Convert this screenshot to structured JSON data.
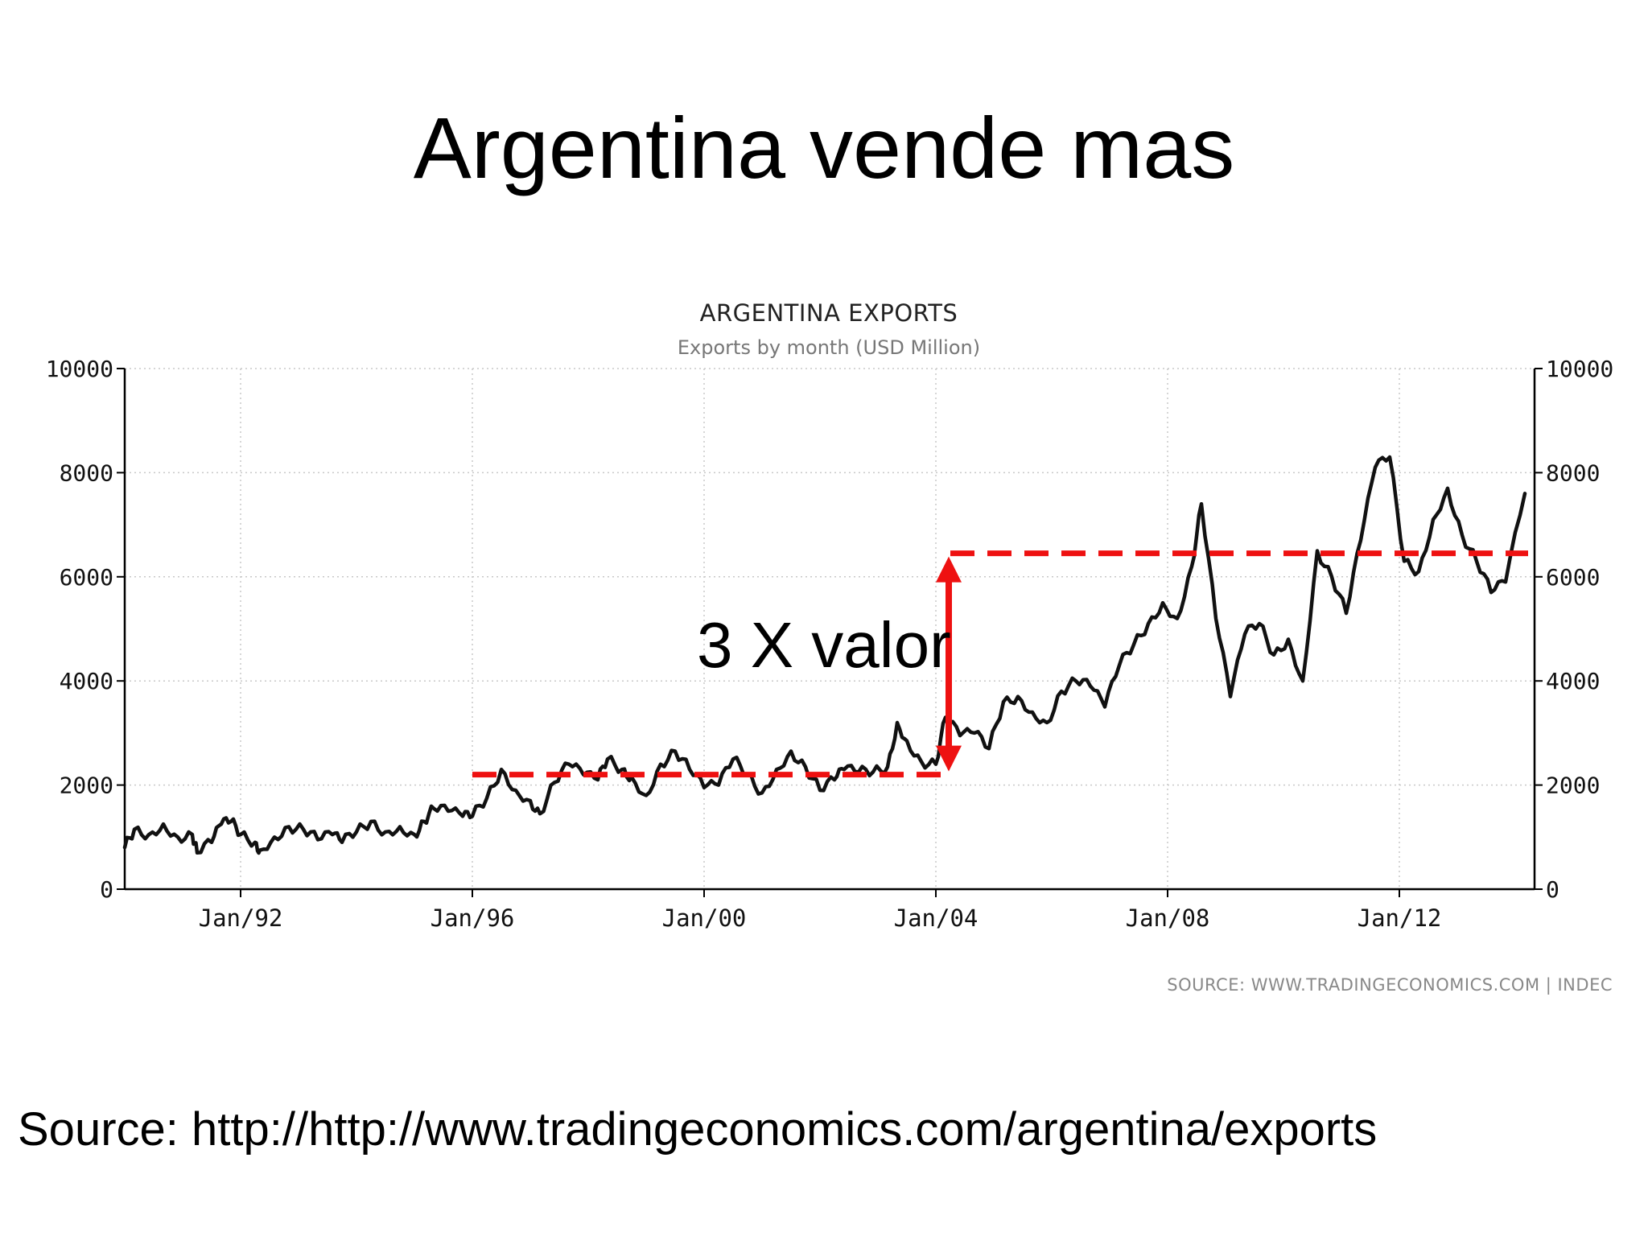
{
  "slide": {
    "title": "Argentina vende mas",
    "source": "Source: http://http://www.tradingeconomics.com/argentina/exports"
  },
  "annotation": {
    "label": "3 X valor",
    "baseline_value": 2200,
    "top_value": 6450,
    "baseline_range": [
      "Jan/96",
      "Jan/04"
    ],
    "top_range": [
      "Jan/04",
      "2014-03"
    ],
    "color": "#ee1111"
  },
  "chart_data": {
    "type": "line",
    "title": "ARGENTINA EXPORTS",
    "subtitle": "Exports by month (USD Million)",
    "source": "SOURCE:  WWW.TRADINGECONOMICS.COM  |  INDEC",
    "ylim": [
      0,
      10000
    ],
    "yticks": [
      0,
      2000,
      4000,
      6000,
      8000,
      10000
    ],
    "xlim": [
      "1990-01",
      "2014-05"
    ],
    "xticks": [
      {
        "label": "Jan/92",
        "date": "1992-01"
      },
      {
        "label": "Jan/96",
        "date": "1996-01"
      },
      {
        "label": "Jan/00",
        "date": "2000-01"
      },
      {
        "label": "Jan/04",
        "date": "2004-01"
      },
      {
        "label": "Jan/08",
        "date": "2008-01"
      },
      {
        "label": "Jan/12",
        "date": "2012-01"
      }
    ],
    "grid": true,
    "line_color": "#111111",
    "series": [
      {
        "points": [
          [
            "1990-01",
            800
          ],
          [
            "1990-03",
            1150
          ],
          [
            "1990-06",
            1050
          ],
          [
            "1990-09",
            1250
          ],
          [
            "1990-12",
            1000
          ],
          [
            "1991-03",
            1050
          ],
          [
            "1991-04",
            700
          ],
          [
            "1991-07",
            900
          ],
          [
            "1991-09",
            1250
          ],
          [
            "1991-11",
            1300
          ],
          [
            "1992-01",
            1050
          ],
          [
            "1992-04",
            900
          ],
          [
            "1992-05",
            750
          ],
          [
            "1992-08",
            1000
          ],
          [
            "1992-11",
            1200
          ],
          [
            "1993-02",
            1150
          ],
          [
            "1993-05",
            950
          ],
          [
            "1993-08",
            1050
          ],
          [
            "1993-10",
            900
          ],
          [
            "1994-01",
            1100
          ],
          [
            "1994-04",
            1300
          ],
          [
            "1994-07",
            1100
          ],
          [
            "1994-10",
            1200
          ],
          [
            "1995-01",
            1050
          ],
          [
            "1995-03",
            1300
          ],
          [
            "1995-05",
            1550
          ],
          [
            "1995-08",
            1500
          ],
          [
            "1995-11",
            1400
          ],
          [
            "1996-01",
            1400
          ],
          [
            "1996-04",
            1750
          ],
          [
            "1996-07",
            2300
          ],
          [
            "1996-10",
            1900
          ],
          [
            "1997-01",
            1700
          ],
          [
            "1997-03",
            1450
          ],
          [
            "1997-06",
            2050
          ],
          [
            "1997-09",
            2400
          ],
          [
            "1997-12",
            2200
          ],
          [
            "1998-03",
            2100
          ],
          [
            "1998-05",
            2500
          ],
          [
            "1998-08",
            2300
          ],
          [
            "1998-10",
            2150
          ],
          [
            "1999-01",
            1800
          ],
          [
            "1999-04",
            2400
          ],
          [
            "1999-07",
            2650
          ],
          [
            "1999-10",
            2300
          ],
          [
            "2000-01",
            1950
          ],
          [
            "2000-04",
            2000
          ],
          [
            "2000-07",
            2500
          ],
          [
            "2000-10",
            2200
          ],
          [
            "2001-01",
            1850
          ],
          [
            "2001-04",
            2300
          ],
          [
            "2001-07",
            2650
          ],
          [
            "2001-10",
            2350
          ],
          [
            "2002-01",
            1900
          ],
          [
            "2002-04",
            2100
          ],
          [
            "2002-06",
            2300
          ],
          [
            "2002-09",
            2250
          ],
          [
            "2002-12",
            2250
          ],
          [
            "2003-03",
            2350
          ],
          [
            "2003-05",
            3200
          ],
          [
            "2003-07",
            2850
          ],
          [
            "2003-10",
            2450
          ],
          [
            "2004-01",
            2400
          ],
          [
            "2004-03",
            3300
          ],
          [
            "2004-06",
            2950
          ],
          [
            "2004-09",
            3000
          ],
          [
            "2004-12",
            2700
          ],
          [
            "2005-03",
            3600
          ],
          [
            "2005-06",
            3700
          ],
          [
            "2005-09",
            3400
          ],
          [
            "2005-12",
            3200
          ],
          [
            "2006-03",
            3800
          ],
          [
            "2006-06",
            4000
          ],
          [
            "2006-09",
            3900
          ],
          [
            "2006-12",
            3500
          ],
          [
            "2007-03",
            4300
          ],
          [
            "2007-06",
            4700
          ],
          [
            "2007-09",
            5100
          ],
          [
            "2007-12",
            5500
          ],
          [
            "2008-03",
            5200
          ],
          [
            "2008-06",
            6200
          ],
          [
            "2008-08",
            7400
          ],
          [
            "2008-11",
            5200
          ],
          [
            "2009-02",
            3700
          ],
          [
            "2009-05",
            4900
          ],
          [
            "2009-08",
            5100
          ],
          [
            "2009-11",
            4500
          ],
          [
            "2010-02",
            4800
          ],
          [
            "2010-05",
            4000
          ],
          [
            "2010-08",
            6500
          ],
          [
            "2010-11",
            6000
          ],
          [
            "2011-02",
            5300
          ],
          [
            "2011-05",
            6700
          ],
          [
            "2011-08",
            8100
          ],
          [
            "2011-11",
            8300
          ],
          [
            "2012-02",
            6300
          ],
          [
            "2012-05",
            6100
          ],
          [
            "2012-08",
            7100
          ],
          [
            "2012-11",
            7700
          ],
          [
            "2013-02",
            6800
          ],
          [
            "2013-05",
            6300
          ],
          [
            "2013-08",
            5700
          ],
          [
            "2013-11",
            5900
          ],
          [
            "2014-03",
            7600
          ]
        ]
      }
    ]
  }
}
